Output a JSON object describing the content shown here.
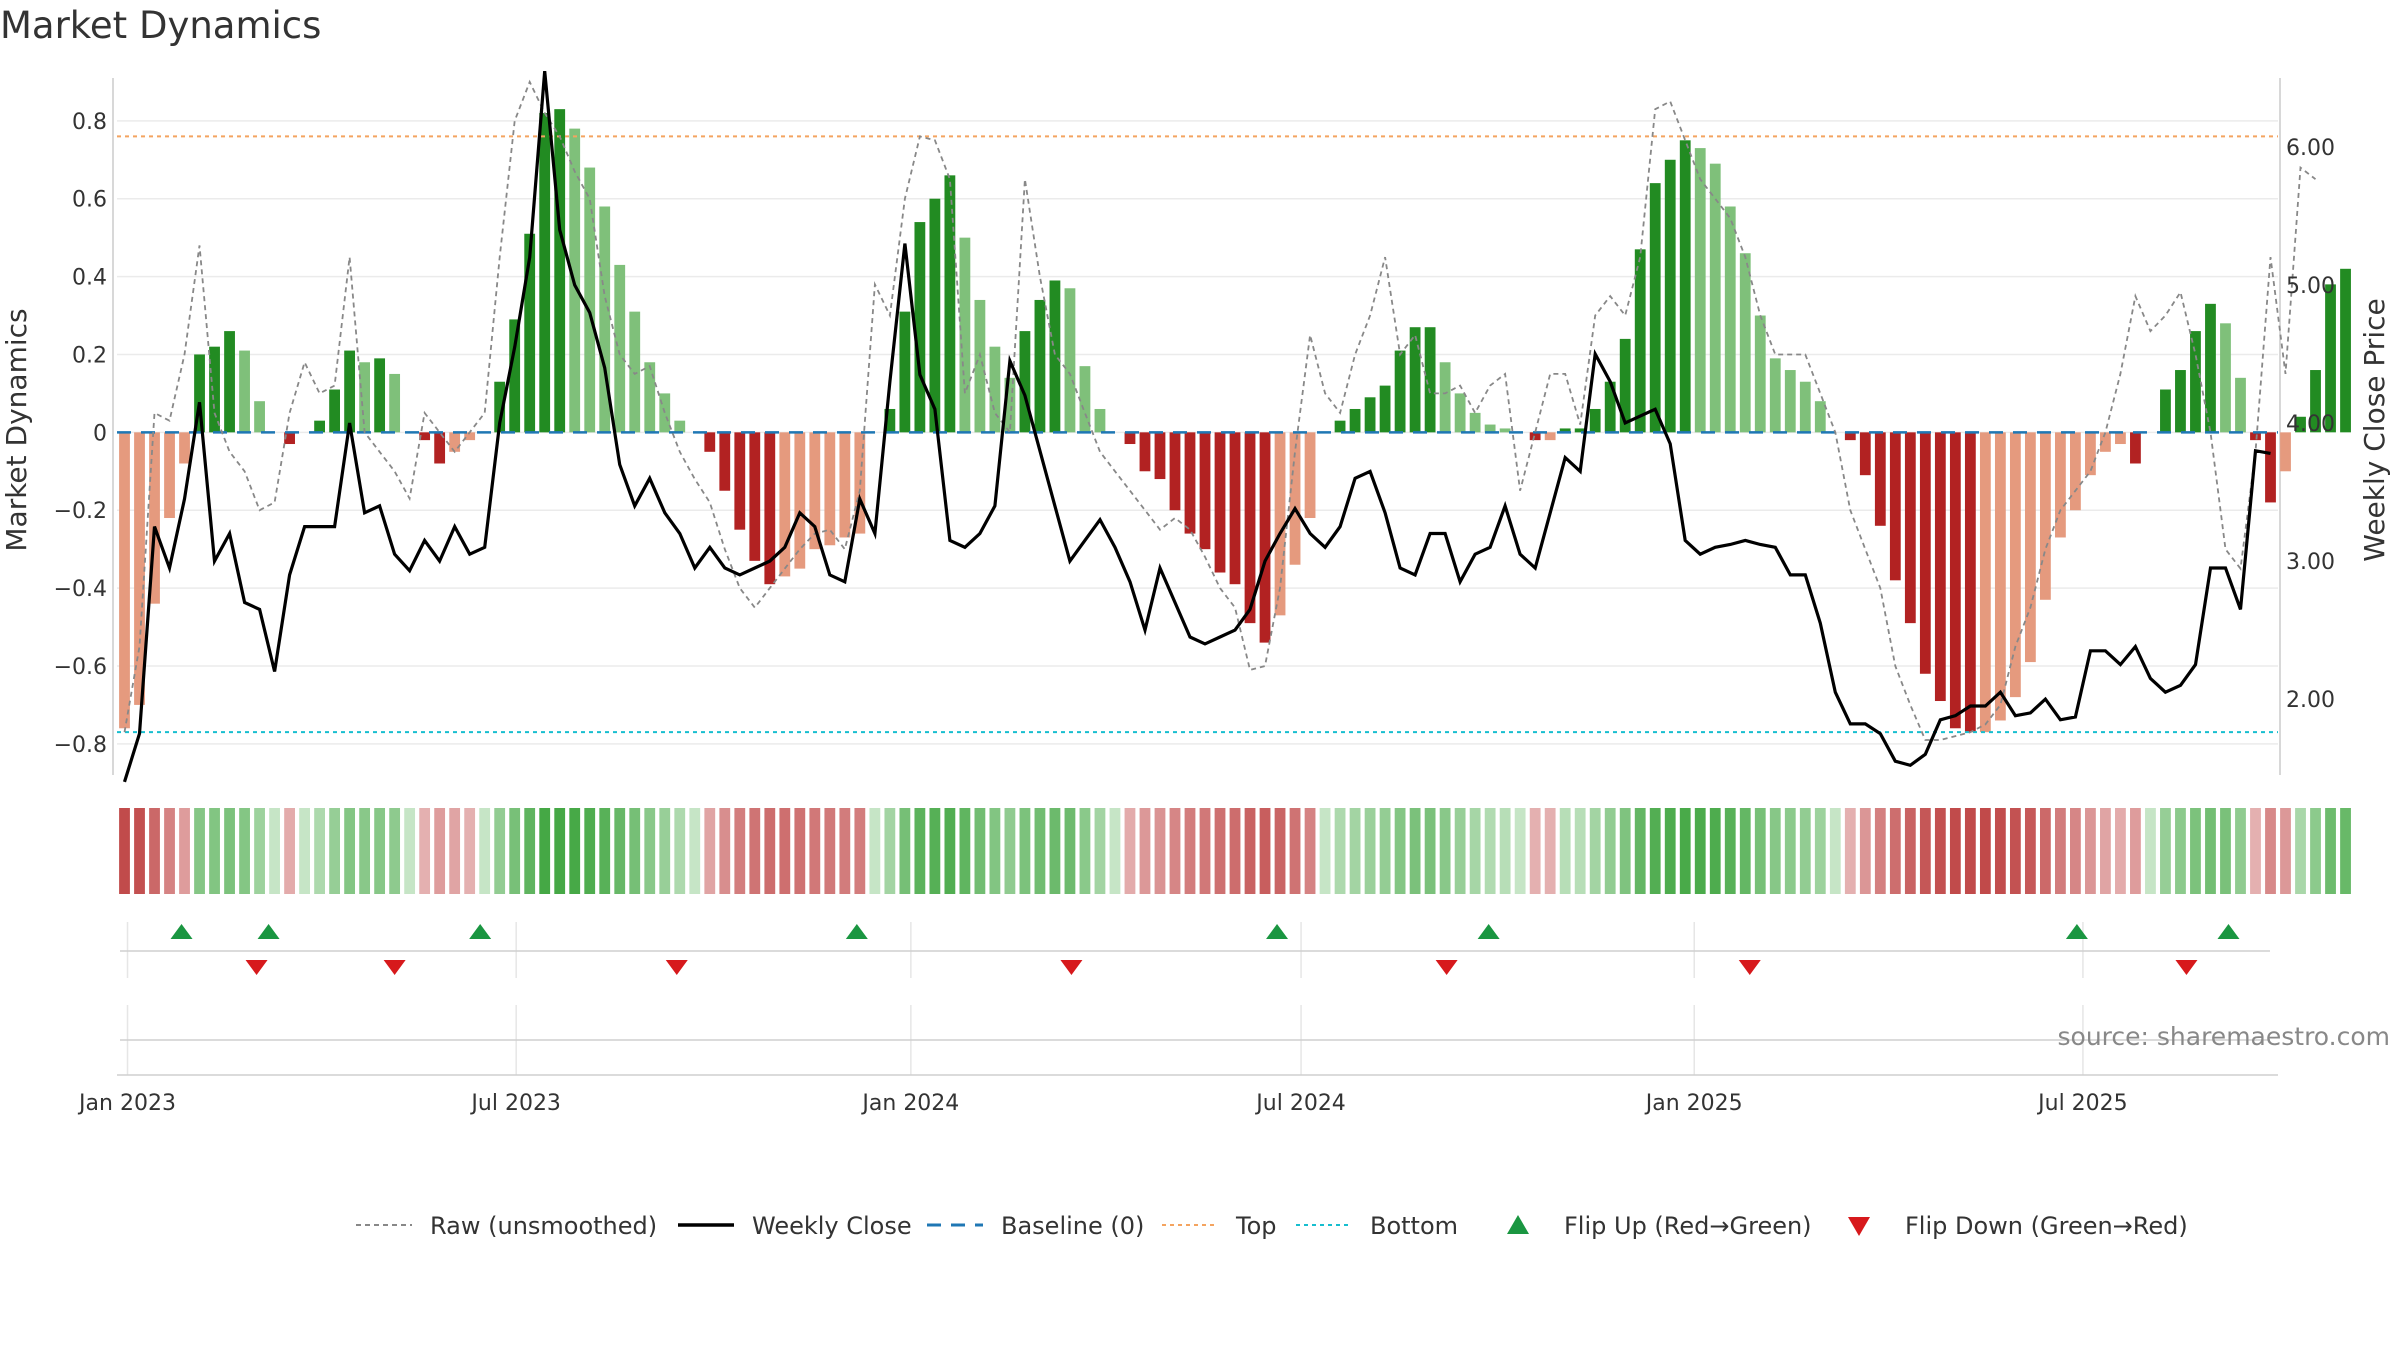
{
  "title": "Market Dynamics",
  "source": "source: sharemaestro.com",
  "colors": {
    "strong_green": "#228b22",
    "light_green": "#7fc07a",
    "strong_red": "#b22222",
    "light_red": "#e59a7e",
    "raw_line": "#888888",
    "close_line": "#000000",
    "baseline": "#1f77b4",
    "top": "#f4a460",
    "bottom": "#17becf",
    "flip_up": "#1a9641",
    "flip_down": "#d7191c"
  },
  "chart_data": {
    "type": "bar",
    "title": "Market Dynamics",
    "ylabel": "Market Dynamics",
    "y2label": "Weekly Close Price",
    "ylim": [
      -0.88,
      0.91
    ],
    "y2lim": [
      1.45,
      6.5
    ],
    "yticks": [
      "−0.8",
      "−0.6",
      "−0.4",
      "−0.2",
      "0",
      "0.2",
      "0.4",
      "0.6",
      "0.8"
    ],
    "yticks_values": [
      -0.8,
      -0.6,
      -0.4,
      -0.2,
      0,
      0.2,
      0.4,
      0.6,
      0.8
    ],
    "y2ticks": [
      "2.00",
      "3.00",
      "4.00",
      "5.00",
      "6.00"
    ],
    "y2ticks_values": [
      2,
      3,
      4,
      5,
      6
    ],
    "xticks": [
      "Jan 2023",
      "Jul 2023",
      "Jan 2024",
      "Jul 2024",
      "Jan 2025",
      "Jul 2025"
    ],
    "xticks_week": [
      0.7,
      26.6,
      52.9,
      78.9,
      105.1,
      131.0
    ],
    "top_level": 0.76,
    "bottom_level": -0.77,
    "baseline": 0,
    "grid": true,
    "legend_position": "bottom",
    "series": [
      {
        "name": "Raw (unsmoothed)",
        "style": "dashed"
      },
      {
        "name": "Weekly Close",
        "style": "solid"
      },
      {
        "name": "Baseline (0)",
        "style": "dashed"
      },
      {
        "name": "Top",
        "style": "dotted"
      },
      {
        "name": "Bottom",
        "style": "dotted"
      },
      {
        "name": "Flip Up (Red→Green)",
        "style": "marker-up"
      },
      {
        "name": "Flip Down (Green→Red)",
        "style": "marker-down"
      }
    ],
    "weeks": 144,
    "values": [
      -0.76,
      -0.7,
      -0.44,
      -0.22,
      -0.08,
      0.2,
      0.22,
      0.26,
      0.21,
      0.08,
      0.0,
      -0.03,
      0.0,
      0.03,
      0.11,
      0.21,
      0.18,
      0.19,
      0.15,
      0.0,
      -0.02,
      -0.08,
      -0.05,
      -0.02,
      0.0,
      0.13,
      0.29,
      0.51,
      0.82,
      0.83,
      0.78,
      0.68,
      0.58,
      0.43,
      0.31,
      0.18,
      0.1,
      0.03,
      0.0,
      -0.05,
      -0.15,
      -0.25,
      -0.33,
      -0.39,
      -0.37,
      -0.35,
      -0.3,
      -0.29,
      -0.27,
      -0.26,
      0.0,
      0.06,
      0.31,
      0.54,
      0.6,
      0.66,
      0.5,
      0.34,
      0.22,
      0.14,
      0.26,
      0.34,
      0.39,
      0.37,
      0.17,
      0.06,
      0.0,
      -0.03,
      -0.1,
      -0.12,
      -0.2,
      -0.26,
      -0.3,
      -0.36,
      -0.39,
      -0.49,
      -0.54,
      -0.47,
      -0.34,
      -0.22,
      0.0,
      0.03,
      0.06,
      0.09,
      0.12,
      0.21,
      0.27,
      0.27,
      0.18,
      0.1,
      0.05,
      0.02,
      0.01,
      0.0,
      -0.02,
      -0.02,
      0.01,
      0.01,
      0.06,
      0.13,
      0.24,
      0.47,
      0.64,
      0.7,
      0.75,
      0.73,
      0.69,
      0.58,
      0.46,
      0.3,
      0.19,
      0.16,
      0.13,
      0.08,
      0.0,
      -0.02,
      -0.11,
      -0.24,
      -0.38,
      -0.49,
      -0.62,
      -0.69,
      -0.76,
      -0.77,
      -0.77,
      -0.74,
      -0.68,
      -0.59,
      -0.43,
      -0.27,
      -0.2,
      -0.11,
      -0.05,
      -0.03,
      -0.08,
      0.0,
      0.11,
      0.16,
      0.26,
      0.33,
      0.28,
      0.14,
      -0.02,
      -0.18,
      -0.1,
      0.04,
      0.16,
      0.38,
      0.42
    ],
    "weekly_close": [
      1.4,
      1.75,
      3.25,
      2.95,
      3.45,
      4.15,
      3.0,
      3.2,
      2.7,
      2.65,
      2.2,
      2.9,
      3.25,
      3.25,
      3.25,
      4.0,
      3.35,
      3.4,
      3.05,
      2.93,
      3.15,
      3.0,
      3.25,
      3.05,
      3.1,
      4.0,
      4.55,
      5.2,
      6.55,
      5.4,
      5.0,
      4.8,
      4.4,
      3.7,
      3.4,
      3.6,
      3.35,
      3.2,
      2.95,
      3.1,
      2.95,
      2.9,
      2.95,
      3.0,
      3.1,
      3.35,
      3.25,
      2.9,
      2.85,
      3.45,
      3.2,
      4.3,
      5.3,
      4.35,
      4.1,
      3.15,
      3.1,
      3.2,
      3.4,
      4.45,
      4.2,
      3.8,
      3.4,
      3.0,
      3.15,
      3.3,
      3.1,
      2.85,
      2.5,
      2.95,
      2.7,
      2.45,
      2.4,
      2.45,
      2.5,
      2.65,
      3.0,
      3.2,
      3.38,
      3.2,
      3.1,
      3.25,
      3.6,
      3.65,
      3.35,
      2.95,
      2.9,
      3.2,
      3.2,
      2.85,
      3.05,
      3.1,
      3.4,
      3.05,
      2.95,
      3.35,
      3.75,
      3.65,
      4.5,
      4.3,
      4.0,
      4.05,
      4.1,
      3.85,
      3.15,
      3.05,
      3.1,
      3.12,
      3.15,
      3.12,
      3.1,
      2.9,
      2.9,
      2.55,
      2.05,
      1.82,
      1.82,
      1.75,
      1.55,
      1.52,
      1.6,
      1.85,
      1.88,
      1.95,
      1.95,
      2.05,
      1.88,
      1.9,
      2.0,
      1.85,
      1.87,
      2.35,
      2.35,
      2.25,
      2.38,
      2.15,
      2.05,
      2.1,
      2.25,
      2.95,
      2.95,
      2.65,
      3.8,
      3.78
    ],
    "raw": [
      -0.77,
      -0.55,
      0.05,
      0.03,
      0.2,
      0.48,
      0.05,
      -0.05,
      -0.1,
      -0.2,
      -0.18,
      0.05,
      0.18,
      0.1,
      0.12,
      0.45,
      0.0,
      -0.05,
      -0.1,
      -0.17,
      0.05,
      0.0,
      -0.05,
      0.0,
      0.05,
      0.45,
      0.8,
      0.9,
      0.82,
      0.76,
      0.67,
      0.6,
      0.35,
      0.2,
      0.15,
      0.17,
      0.05,
      -0.05,
      -0.12,
      -0.18,
      -0.3,
      -0.4,
      -0.45,
      -0.4,
      -0.35,
      -0.3,
      -0.26,
      -0.25,
      -0.3,
      -0.15,
      0.38,
      0.3,
      0.6,
      0.76,
      0.75,
      0.65,
      0.1,
      0.2,
      0.05,
      0.0,
      0.65,
      0.4,
      0.2,
      0.15,
      0.05,
      -0.05,
      -0.1,
      -0.15,
      -0.2,
      -0.25,
      -0.22,
      -0.25,
      -0.32,
      -0.4,
      -0.45,
      -0.61,
      -0.6,
      -0.4,
      -0.05,
      0.25,
      0.1,
      0.05,
      0.2,
      0.3,
      0.45,
      0.2,
      0.25,
      0.1,
      0.1,
      0.12,
      0.05,
      0.12,
      0.15,
      -0.15,
      0.0,
      0.15,
      0.15,
      0.02,
      0.3,
      0.35,
      0.3,
      0.45,
      0.83,
      0.85,
      0.75,
      0.65,
      0.6,
      0.55,
      0.45,
      0.3,
      0.2,
      0.2,
      0.2,
      0.1,
      0.0,
      -0.2,
      -0.3,
      -0.4,
      -0.6,
      -0.7,
      -0.79,
      -0.79,
      -0.78,
      -0.77,
      -0.75,
      -0.7,
      -0.55,
      -0.45,
      -0.3,
      -0.2,
      -0.15,
      -0.1,
      0.0,
      0.15,
      0.35,
      0.26,
      0.3,
      0.36,
      0.2,
      0.0,
      -0.3,
      -0.35,
      -0.05,
      0.45,
      0.15,
      0.68,
      0.65
    ],
    "flip_up_weeks": [
      4.3,
      10.1,
      24.2,
      49.3,
      77.3,
      91.4,
      130.6,
      140.7
    ],
    "flip_down_weeks": [
      9.3,
      18.5,
      37.3,
      63.6,
      88.6,
      108.8,
      137.9
    ]
  }
}
